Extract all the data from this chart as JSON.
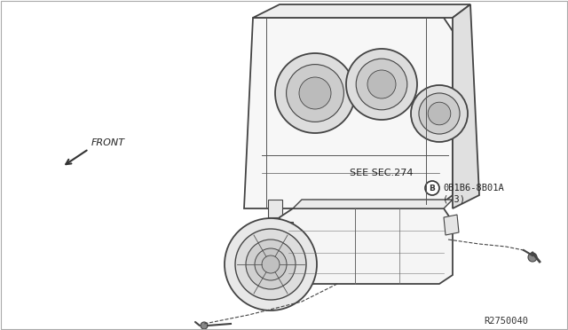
{
  "bg_color": "#ffffff",
  "line_color": "#333333",
  "text_color": "#000000",
  "title": "",
  "diagram_ref": "R2750040",
  "front_label": "FRONT",
  "see_sec_label": "SEE SEC.274",
  "part_label": "0B1B6-8B01A",
  "part_qty": "( 3)",
  "part_circle_label": "B",
  "figsize": [
    6.4,
    3.72
  ],
  "dpi": 100
}
